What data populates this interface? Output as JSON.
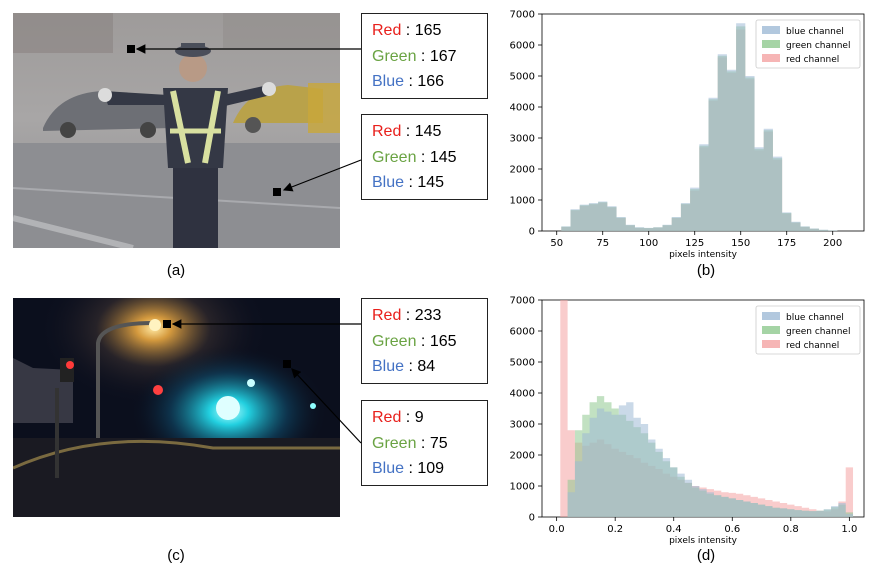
{
  "panels": {
    "a": {
      "caption": "(a)",
      "points": [
        {
          "red_label": "Red",
          "red": "165",
          "green_label": "Green",
          "green": "167",
          "blue_label": "Blue",
          "blue": "166"
        },
        {
          "red_label": "Red",
          "red": "145",
          "green_label": "Green",
          "green": "145",
          "blue_label": "Blue",
          "blue": "145"
        }
      ]
    },
    "b": {
      "caption": "(b)"
    },
    "c": {
      "caption": "(c)",
      "points": [
        {
          "red_label": "Red",
          "red": "233",
          "green_label": "Green",
          "green": "165",
          "blue_label": "Blue",
          "blue": "84"
        },
        {
          "red_label": "Red",
          "red": "9",
          "green_label": "Green",
          "green": "75",
          "blue_label": "Blue",
          "blue": "109"
        }
      ]
    },
    "d": {
      "caption": "(d)"
    }
  },
  "colors": {
    "red_channel": "#f4a3a3",
    "green_channel": "#8fc98f",
    "blue_channel": "#9fbad6",
    "red_text": "#e8201c",
    "green_text": "#6aa343",
    "blue_text": "#4472c4"
  },
  "chart_data": [
    {
      "type": "histogram",
      "panel": "(b)",
      "xlabel": "pixels intensity",
      "ylabel": "",
      "xlim": [
        42,
        217
      ],
      "ylim": [
        0,
        7000
      ],
      "xticks": [
        "50",
        "75",
        "100",
        "125",
        "150",
        "175",
        "200"
      ],
      "yticks": [
        "0",
        "1000",
        "2000",
        "3000",
        "4000",
        "5000",
        "6000",
        "7000"
      ],
      "legend": "top-right",
      "x": [
        50,
        55,
        60,
        65,
        70,
        75,
        80,
        85,
        90,
        95,
        100,
        105,
        110,
        115,
        120,
        125,
        130,
        135,
        140,
        145,
        150,
        155,
        160,
        165,
        170,
        175,
        180,
        185,
        190,
        195,
        200,
        205,
        210
      ],
      "series": [
        {
          "name": "blue channel",
          "values": [
            0,
            150,
            700,
            850,
            900,
            950,
            800,
            450,
            200,
            120,
            100,
            120,
            200,
            450,
            900,
            1400,
            2800,
            4300,
            5700,
            5200,
            6700,
            5000,
            2700,
            3300,
            2400,
            600,
            300,
            150,
            80,
            40,
            20,
            0,
            0
          ]
        },
        {
          "name": "green channel",
          "values": [
            0,
            140,
            680,
            830,
            880,
            930,
            780,
            430,
            190,
            110,
            95,
            115,
            190,
            430,
            880,
            1350,
            2750,
            4250,
            5650,
            5150,
            6600,
            4950,
            2650,
            3250,
            2350,
            580,
            280,
            140,
            75,
            35,
            18,
            0,
            0
          ]
        },
        {
          "name": "red channel",
          "values": [
            0,
            130,
            660,
            810,
            860,
            910,
            760,
            420,
            180,
            100,
            90,
            110,
            180,
            420,
            860,
            1300,
            2700,
            4200,
            5600,
            5100,
            6500,
            4900,
            2600,
            3200,
            2300,
            560,
            270,
            130,
            70,
            30,
            15,
            0,
            0
          ]
        }
      ]
    },
    {
      "type": "histogram",
      "panel": "(d)",
      "xlabel": "pixels intensity",
      "ylabel": "",
      "xlim": [
        -0.05,
        1.05
      ],
      "ylim": [
        0,
        7000
      ],
      "xticks": [
        "0.0",
        "0.2",
        "0.4",
        "0.6",
        "0.8",
        "1.0"
      ],
      "yticks": [
        "0",
        "1000",
        "2000",
        "3000",
        "4000",
        "5000",
        "6000",
        "7000"
      ],
      "legend": "top-right",
      "x": [
        0,
        0.025,
        0.05,
        0.075,
        0.1,
        0.125,
        0.15,
        0.175,
        0.2,
        0.225,
        0.25,
        0.275,
        0.3,
        0.325,
        0.35,
        0.375,
        0.4,
        0.425,
        0.45,
        0.475,
        0.5,
        0.525,
        0.55,
        0.575,
        0.6,
        0.625,
        0.65,
        0.675,
        0.7,
        0.725,
        0.75,
        0.775,
        0.8,
        0.825,
        0.85,
        0.875,
        0.9,
        0.925,
        0.95,
        0.975,
        1.0
      ],
      "series": [
        {
          "name": "blue channel",
          "values": [
            0,
            0,
            800,
            1800,
            2700,
            3200,
            3500,
            3400,
            3300,
            3600,
            3700,
            3200,
            3000,
            2500,
            2200,
            1900,
            1600,
            1400,
            1200,
            1000,
            900,
            800,
            700,
            650,
            600,
            550,
            500,
            450,
            400,
            350,
            300,
            280,
            250,
            220,
            200,
            190,
            200,
            250,
            350,
            450,
            100
          ]
        },
        {
          "name": "green channel",
          "values": [
            0,
            0,
            1200,
            2800,
            3300,
            3700,
            3900,
            3700,
            3500,
            3300,
            3100,
            2900,
            2700,
            2400,
            2100,
            1800,
            1600,
            1300,
            1100,
            950,
            850,
            750,
            700,
            650,
            600,
            550,
            500,
            450,
            400,
            350,
            300,
            280,
            250,
            220,
            200,
            190,
            200,
            240,
            320,
            400,
            150
          ]
        },
        {
          "name": "red channel",
          "values": [
            0,
            7000,
            2800,
            2400,
            2300,
            2400,
            2500,
            2350,
            2200,
            2100,
            2000,
            1900,
            1750,
            1650,
            1550,
            1400,
            1300,
            1200,
            1100,
            1000,
            950,
            900,
            850,
            800,
            780,
            750,
            700,
            650,
            600,
            550,
            500,
            450,
            400,
            350,
            300,
            250,
            200,
            180,
            250,
            500,
            1600
          ]
        }
      ]
    }
  ]
}
